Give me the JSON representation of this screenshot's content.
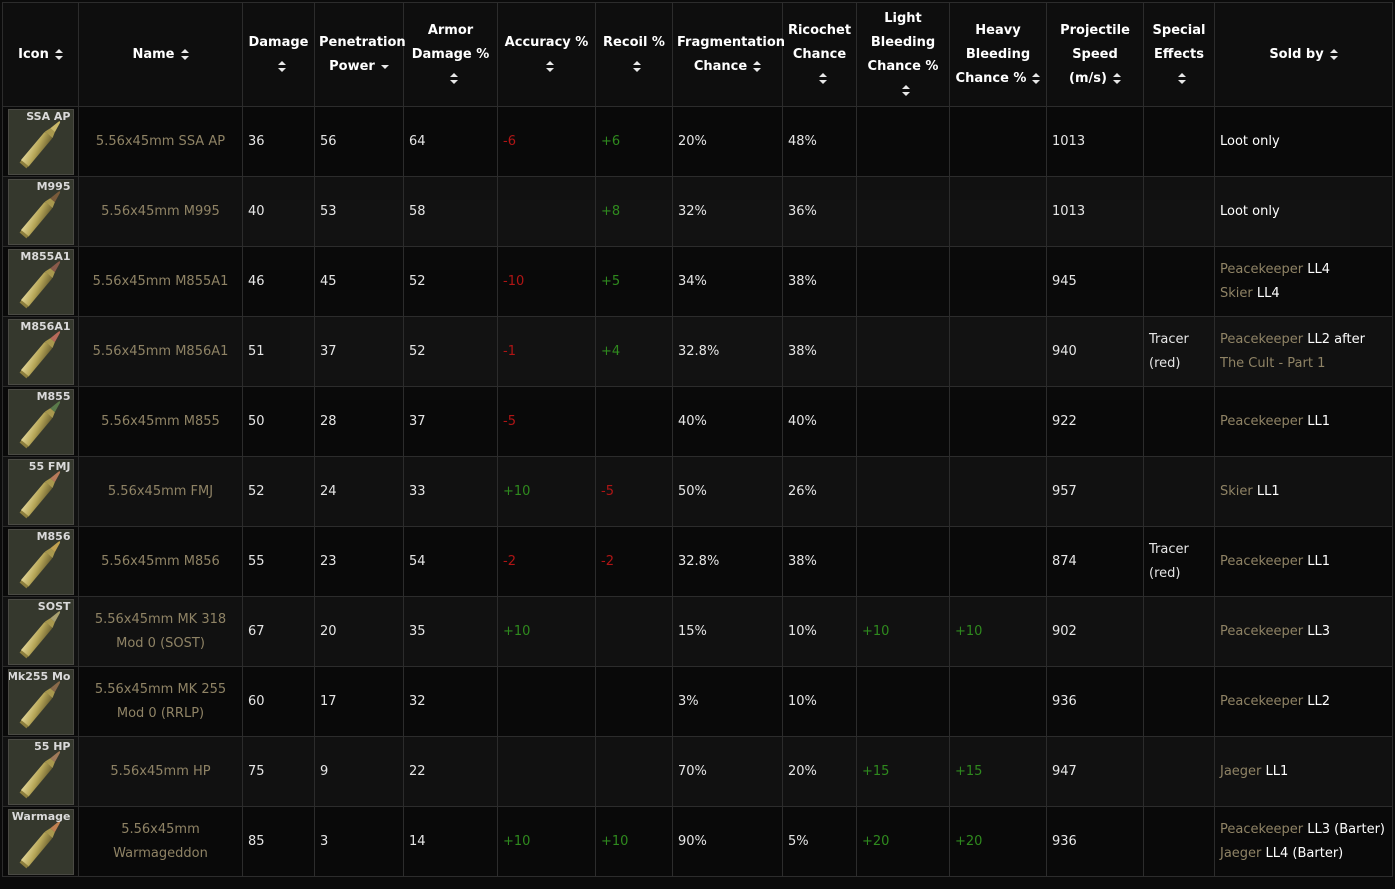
{
  "headers": [
    {
      "label": "Icon",
      "sort": "both"
    },
    {
      "label": "Name",
      "sort": "both"
    },
    {
      "label": "Damage",
      "sort": "both"
    },
    {
      "label": "Penetration Power",
      "sort": "desc"
    },
    {
      "label": "Armor Damage %",
      "sort": "both"
    },
    {
      "label": "Accuracy %",
      "sort": "both"
    },
    {
      "label": "Recoil %",
      "sort": "both"
    },
    {
      "label": "Fragmentation Chance",
      "sort": "both"
    },
    {
      "label": "Ricochet Chance",
      "sort": "both"
    },
    {
      "label": "Light Bleeding Chance %",
      "sort": "both"
    },
    {
      "label": "Heavy Bleeding Chance %",
      "sort": "both"
    },
    {
      "label": "Projectile Speed (m/s)",
      "sort": "both"
    },
    {
      "label": "Special Effects",
      "sort": "both"
    },
    {
      "label": "Sold by",
      "sort": "both"
    }
  ],
  "rows": [
    {
      "icon_label": "SSA AP",
      "icon_tip": "#c9b86a",
      "name": "5.56x45mm SSA AP",
      "damage": "36",
      "penetration": "56",
      "armor_damage": "64",
      "accuracy": "-6",
      "recoil": "+6",
      "fragmentation": "20%",
      "ricochet": "48%",
      "light_bleed": "",
      "heavy_bleed": "",
      "speed": "1013",
      "special": "",
      "sold_by": [
        {
          "trader": "",
          "level": "Loot only"
        }
      ]
    },
    {
      "icon_label": "M995",
      "icon_tip": "#7a5a3a",
      "name": "5.56x45mm M995",
      "damage": "40",
      "penetration": "53",
      "armor_damage": "58",
      "accuracy": "",
      "recoil": "+8",
      "fragmentation": "32%",
      "ricochet": "36%",
      "light_bleed": "",
      "heavy_bleed": "",
      "speed": "1013",
      "special": "",
      "sold_by": [
        {
          "trader": "",
          "level": "Loot only"
        }
      ]
    },
    {
      "icon_label": "M855A1",
      "icon_tip": "#8a5a4a",
      "name": "5.56x45mm M855A1",
      "damage": "46",
      "penetration": "45",
      "armor_damage": "52",
      "accuracy": "-10",
      "recoil": "+5",
      "fragmentation": "34%",
      "ricochet": "38%",
      "light_bleed": "",
      "heavy_bleed": "",
      "speed": "945",
      "special": "",
      "sold_by": [
        {
          "trader": "Peacekeeper",
          "level": "LL4"
        },
        {
          "trader": "Skier",
          "level": "LL4"
        }
      ]
    },
    {
      "icon_label": "M856A1",
      "icon_tip": "#b86a5a",
      "name": "5.56x45mm M856A1",
      "damage": "51",
      "penetration": "37",
      "armor_damage": "52",
      "accuracy": "-1",
      "recoil": "+4",
      "fragmentation": "32.8%",
      "ricochet": "38%",
      "light_bleed": "",
      "heavy_bleed": "",
      "speed": "940",
      "special": "Tracer (red)",
      "sold_by": [
        {
          "trader": "Peacekeeper",
          "level": "LL2 after"
        },
        {
          "trader": "The Cult - Part 1",
          "level": ""
        }
      ]
    },
    {
      "icon_label": "M855",
      "icon_tip": "#5a7a4a",
      "name": "5.56x45mm M855",
      "damage": "50",
      "penetration": "28",
      "armor_damage": "37",
      "accuracy": "-5",
      "recoil": "",
      "fragmentation": "40%",
      "ricochet": "40%",
      "light_bleed": "",
      "heavy_bleed": "",
      "speed": "922",
      "special": "",
      "sold_by": [
        {
          "trader": "Peacekeeper",
          "level": "LL1"
        }
      ]
    },
    {
      "icon_label": "55 FMJ",
      "icon_tip": "#b87a5a",
      "name": "5.56x45mm FMJ",
      "damage": "52",
      "penetration": "24",
      "armor_damage": "33",
      "accuracy": "+10",
      "recoil": "-5",
      "fragmentation": "50%",
      "ricochet": "26%",
      "light_bleed": "",
      "heavy_bleed": "",
      "speed": "957",
      "special": "",
      "sold_by": [
        {
          "trader": "Skier",
          "level": "LL1"
        }
      ]
    },
    {
      "icon_label": "M856",
      "icon_tip": "#c0a050",
      "name": "5.56x45mm M856",
      "damage": "55",
      "penetration": "23",
      "armor_damage": "54",
      "accuracy": "-2",
      "recoil": "-2",
      "fragmentation": "32.8%",
      "ricochet": "38%",
      "light_bleed": "",
      "heavy_bleed": "",
      "speed": "874",
      "special": "Tracer (red)",
      "sold_by": [
        {
          "trader": "Peacekeeper",
          "level": "LL1"
        }
      ]
    },
    {
      "icon_label": "SOST",
      "icon_tip": "#a8a070",
      "name": "5.56x45mm MK 318 Mod 0 (SOST)",
      "damage": "67",
      "penetration": "20",
      "armor_damage": "35",
      "accuracy": "+10",
      "recoil": "",
      "fragmentation": "15%",
      "ricochet": "10%",
      "light_bleed": "+10",
      "heavy_bleed": "+10",
      "speed": "902",
      "special": "",
      "sold_by": [
        {
          "trader": "Peacekeeper",
          "level": "LL3"
        }
      ]
    },
    {
      "icon_label": "Mk255 Mo",
      "icon_tip": "#8a6a4a",
      "name": "5.56x45mm MK 255 Mod 0 (RRLP)",
      "damage": "60",
      "penetration": "17",
      "armor_damage": "32",
      "accuracy": "",
      "recoil": "",
      "fragmentation": "3%",
      "ricochet": "10%",
      "light_bleed": "",
      "heavy_bleed": "",
      "speed": "936",
      "special": "",
      "sold_by": [
        {
          "trader": "Peacekeeper",
          "level": "LL2"
        }
      ]
    },
    {
      "icon_label": "55 HP",
      "icon_tip": "#a07a5a",
      "name": "5.56x45mm HP",
      "damage": "75",
      "penetration": "9",
      "armor_damage": "22",
      "accuracy": "",
      "recoil": "",
      "fragmentation": "70%",
      "ricochet": "20%",
      "light_bleed": "+15",
      "heavy_bleed": "+15",
      "speed": "947",
      "special": "",
      "sold_by": [
        {
          "trader": "Jaeger",
          "level": "LL1"
        }
      ]
    },
    {
      "icon_label": "Warmage",
      "icon_tip": "#c08050",
      "name": "5.56x45mm Warmageddon",
      "damage": "85",
      "penetration": "3",
      "armor_damage": "14",
      "accuracy": "+10",
      "recoil": "+10",
      "fragmentation": "90%",
      "ricochet": "5%",
      "light_bleed": "+20",
      "heavy_bleed": "+20",
      "speed": "936",
      "special": "",
      "sold_by": [
        {
          "trader": "Peacekeeper",
          "level": "LL3 (Barter)"
        },
        {
          "trader": "Jaeger",
          "level": "LL4 (Barter)"
        }
      ]
    }
  ],
  "colors": {
    "negative": "#b01515",
    "positive": "#2f8a1e",
    "trader": "#8f8365",
    "background": "#0b0b0b",
    "grid": "#2c2c2c"
  },
  "icons": {
    "sort": "sort-both-icon",
    "sort_desc": "sort-desc-icon",
    "ammo": "ammo-cartridge-icon"
  }
}
